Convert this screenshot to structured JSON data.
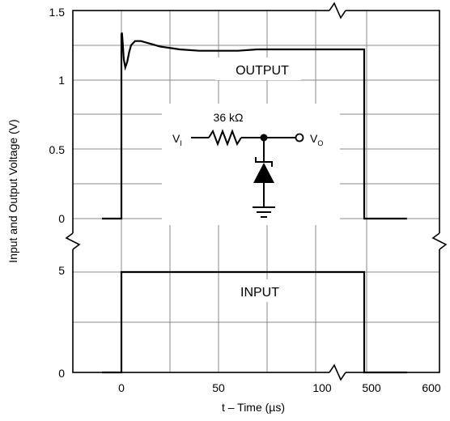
{
  "chart_data": [
    {
      "type": "line",
      "panel": "upper",
      "annotation": "OUTPUT",
      "yticks": [
        "0",
        "0.5",
        "1",
        "1.5"
      ],
      "ylim": [
        0,
        1.5
      ],
      "grid": true,
      "series": [
        {
          "x": [
            -10,
            0,
            0,
            0.3,
            0.7,
            1.2,
            2,
            3,
            4,
            5,
            7,
            10,
            15,
            20,
            30,
            40,
            50,
            60,
            70,
            80,
            90,
            100,
            105,
            115,
            125,
            125,
            135,
            147
          ],
          "y": [
            0,
            0,
            1.33,
            1.34,
            1.26,
            1.15,
            1.09,
            1.13,
            1.2,
            1.25,
            1.28,
            1.28,
            1.26,
            1.24,
            1.22,
            1.21,
            1.21,
            1.21,
            1.22,
            1.22,
            1.22,
            1.22,
            1.22,
            1.22,
            1.22,
            0,
            0,
            0
          ]
        }
      ]
    },
    {
      "type": "line",
      "panel": "lower",
      "annotation": "INPUT",
      "yticks": [
        "0",
        "5"
      ],
      "ylim": [
        0,
        5
      ],
      "grid": true,
      "series": [
        {
          "x": [
            -10,
            0,
            0,
            125,
            125,
            147
          ],
          "y": [
            0,
            0,
            5,
            5,
            0,
            0
          ]
        }
      ]
    }
  ],
  "axes": {
    "ylabel": "Input and Output Voltage (V)",
    "xlabel": "t – Time (µs)",
    "xticks": [
      "0",
      "50",
      "100",
      "500",
      "600"
    ]
  },
  "circuit": {
    "resistor_label": "36 kΩ",
    "vi_label": "V",
    "vi_sub": "I",
    "vo_label": "V",
    "vo_sub": "O"
  }
}
